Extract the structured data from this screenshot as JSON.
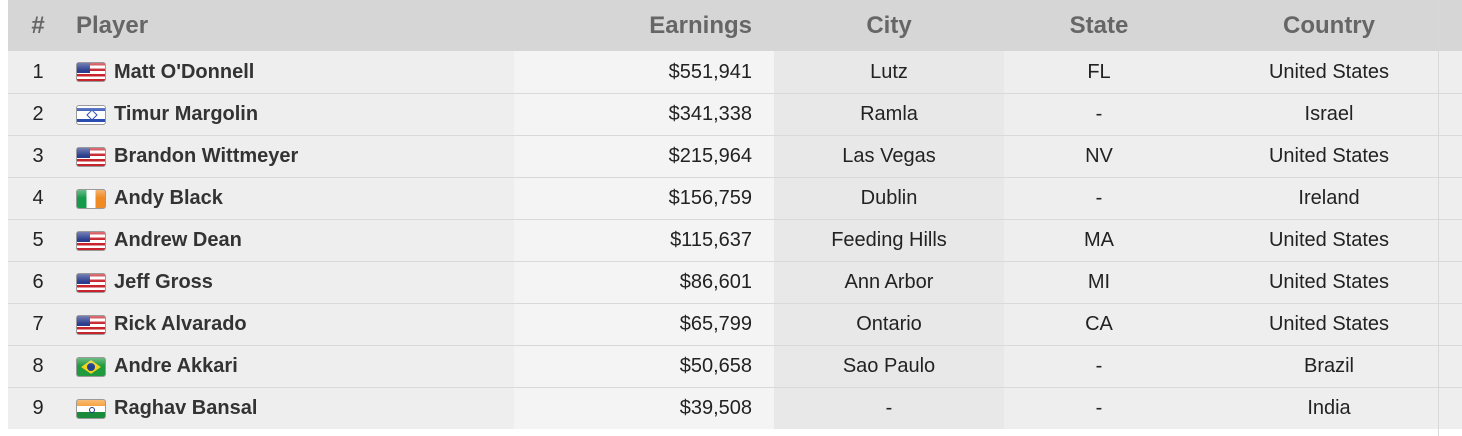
{
  "table": {
    "headers": {
      "rank": "#",
      "player": "Player",
      "earnings": "Earnings",
      "city": "City",
      "state": "State",
      "country": "Country"
    },
    "rows": [
      {
        "rank": "1",
        "flag": "us-flag-icon",
        "player": "Matt O'Donnell",
        "earnings": "$551,941",
        "city": "Lutz",
        "state": "FL",
        "country": "United States"
      },
      {
        "rank": "2",
        "flag": "israel-flag-icon",
        "player": "Timur Margolin",
        "earnings": "$341,338",
        "city": "Ramla",
        "state": "-",
        "country": "Israel"
      },
      {
        "rank": "3",
        "flag": "us-flag-icon",
        "player": "Brandon Wittmeyer",
        "earnings": "$215,964",
        "city": "Las Vegas",
        "state": "NV",
        "country": "United States"
      },
      {
        "rank": "4",
        "flag": "ireland-flag-icon",
        "player": "Andy Black",
        "earnings": "$156,759",
        "city": "Dublin",
        "state": "-",
        "country": "Ireland"
      },
      {
        "rank": "5",
        "flag": "us-flag-icon",
        "player": "Andrew Dean",
        "earnings": "$115,637",
        "city": "Feeding Hills",
        "state": "MA",
        "country": "United States"
      },
      {
        "rank": "6",
        "flag": "us-flag-icon",
        "player": "Jeff Gross",
        "earnings": "$86,601",
        "city": "Ann Arbor",
        "state": "MI",
        "country": "United States"
      },
      {
        "rank": "7",
        "flag": "us-flag-icon",
        "player": "Rick Alvarado",
        "earnings": "$65,799",
        "city": "Ontario",
        "state": "CA",
        "country": "United States"
      },
      {
        "rank": "8",
        "flag": "brazil-flag-icon",
        "player": "Andre Akkari",
        "earnings": "$50,658",
        "city": "Sao Paulo",
        "state": "-",
        "country": "Brazil"
      },
      {
        "rank": "9",
        "flag": "india-flag-icon",
        "player": "Raghav Bansal",
        "earnings": "$39,508",
        "city": "-",
        "state": "-",
        "country": "India"
      }
    ]
  },
  "colors": {
    "header_bg": "#d6d6d6",
    "header_text": "#666666",
    "row_bg": "#eeeeee",
    "alt_col_bg": "#e8e8e8"
  }
}
